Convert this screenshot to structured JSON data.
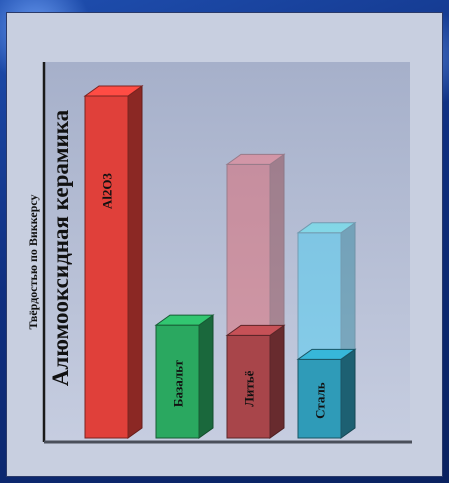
{
  "chart_data": {
    "type": "bar",
    "title": "",
    "ylabel": "Твёрдостью по Виккерсу",
    "annotation": "Алюмооксидная керамика",
    "grid": false,
    "ylim": [
      0,
      100
    ],
    "categories": [
      "Al2O3",
      "Базальт",
      "Литьё",
      "Сталь"
    ],
    "series": [
      {
        "values": [
          100,
          33,
          30,
          23
        ],
        "faded_extension": [
          0,
          0,
          50,
          37
        ]
      }
    ],
    "colors": {
      "Al2O3": "#e0403a",
      "Базальт": "#2aa860",
      "Литьё": "#a8454a",
      "Сталь": "#2f9bb8",
      "plot_background_top": "#a9b3cc",
      "plot_background_bottom": "#c4ccdf"
    }
  }
}
